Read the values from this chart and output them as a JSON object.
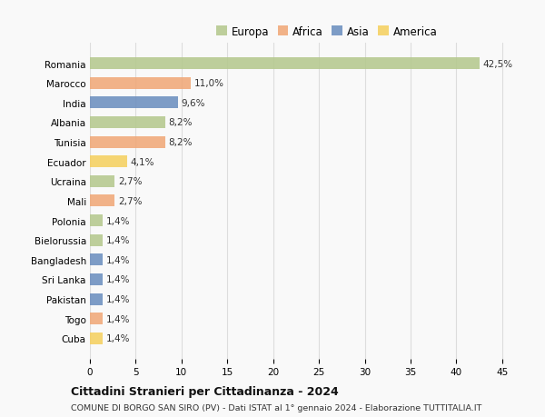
{
  "countries": [
    "Romania",
    "Marocco",
    "India",
    "Albania",
    "Tunisia",
    "Ecuador",
    "Ucraina",
    "Mali",
    "Polonia",
    "Bielorussia",
    "Bangladesh",
    "Sri Lanka",
    "Pakistan",
    "Togo",
    "Cuba"
  ],
  "values": [
    42.5,
    11.0,
    9.6,
    8.2,
    8.2,
    4.1,
    2.7,
    2.7,
    1.4,
    1.4,
    1.4,
    1.4,
    1.4,
    1.4,
    1.4
  ],
  "labels": [
    "42,5%",
    "11,0%",
    "9,6%",
    "8,2%",
    "8,2%",
    "4,1%",
    "2,7%",
    "2,7%",
    "1,4%",
    "1,4%",
    "1,4%",
    "1,4%",
    "1,4%",
    "1,4%",
    "1,4%"
  ],
  "continents": [
    "Europa",
    "Africa",
    "Asia",
    "Europa",
    "Africa",
    "America",
    "Europa",
    "Africa",
    "Europa",
    "Europa",
    "Asia",
    "Asia",
    "Asia",
    "Africa",
    "America"
  ],
  "colors": {
    "Europa": "#b5c98e",
    "Africa": "#f0a878",
    "Asia": "#6c8fbf",
    "America": "#f5d060"
  },
  "legend_order": [
    "Europa",
    "Africa",
    "Asia",
    "America"
  ],
  "title": "Cittadini Stranieri per Cittadinanza - 2024",
  "subtitle": "COMUNE DI BORGO SAN SIRO (PV) - Dati ISTAT al 1° gennaio 2024 - Elaborazione TUTTITALIA.IT",
  "xlim": [
    0,
    47
  ],
  "xticks": [
    0,
    5,
    10,
    15,
    20,
    25,
    30,
    35,
    40,
    45
  ],
  "background_color": "#f9f9f9",
  "grid_color": "#dddddd"
}
